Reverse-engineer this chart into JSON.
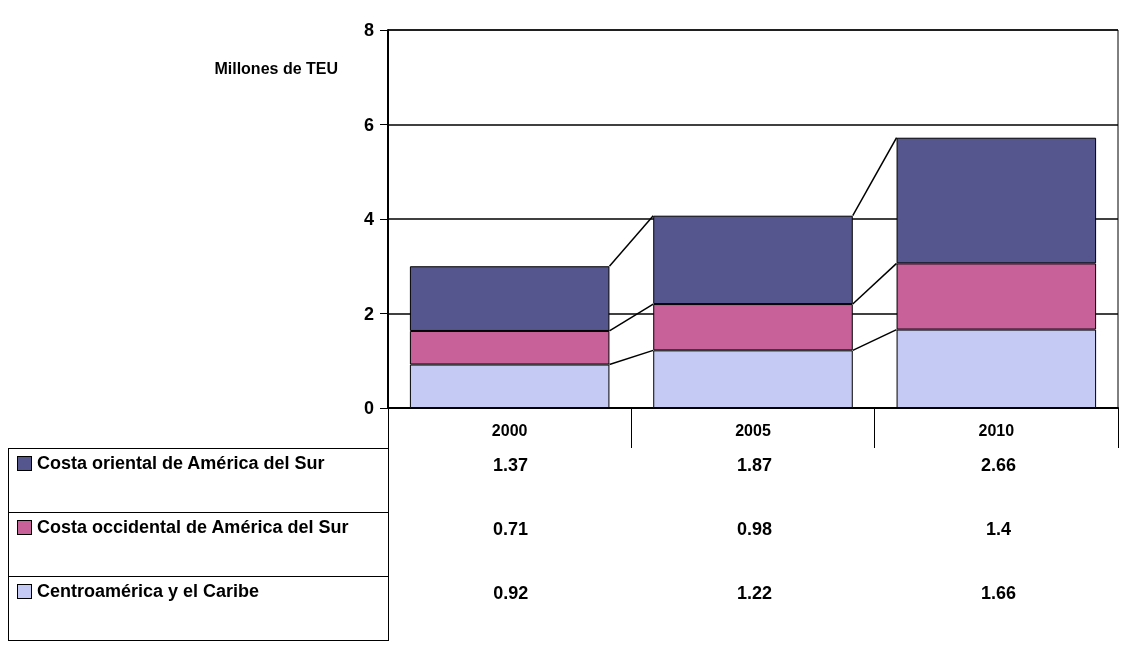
{
  "chart_data": {
    "type": "bar",
    "ylabel": "Millones de TEU",
    "categories": [
      "2000",
      "2005",
      "2010"
    ],
    "stacked": true,
    "series": [
      {
        "name": "Centroamérica y el Caribe",
        "color": "#c4caf4",
        "values": [
          0.92,
          1.22,
          1.66
        ]
      },
      {
        "name": "Costa occidental de América del Sur",
        "color": "#c8609a",
        "values": [
          0.71,
          0.98,
          1.4
        ]
      },
      {
        "name": "Costa oriental de América del Sur",
        "color": "#56568f",
        "values": [
          1.37,
          1.87,
          2.66
        ]
      }
    ],
    "ylim": [
      0,
      8
    ],
    "yticks": [
      0,
      2,
      4,
      6,
      8
    ],
    "grid": "y",
    "legend": "bottom",
    "data_labels": true
  }
}
